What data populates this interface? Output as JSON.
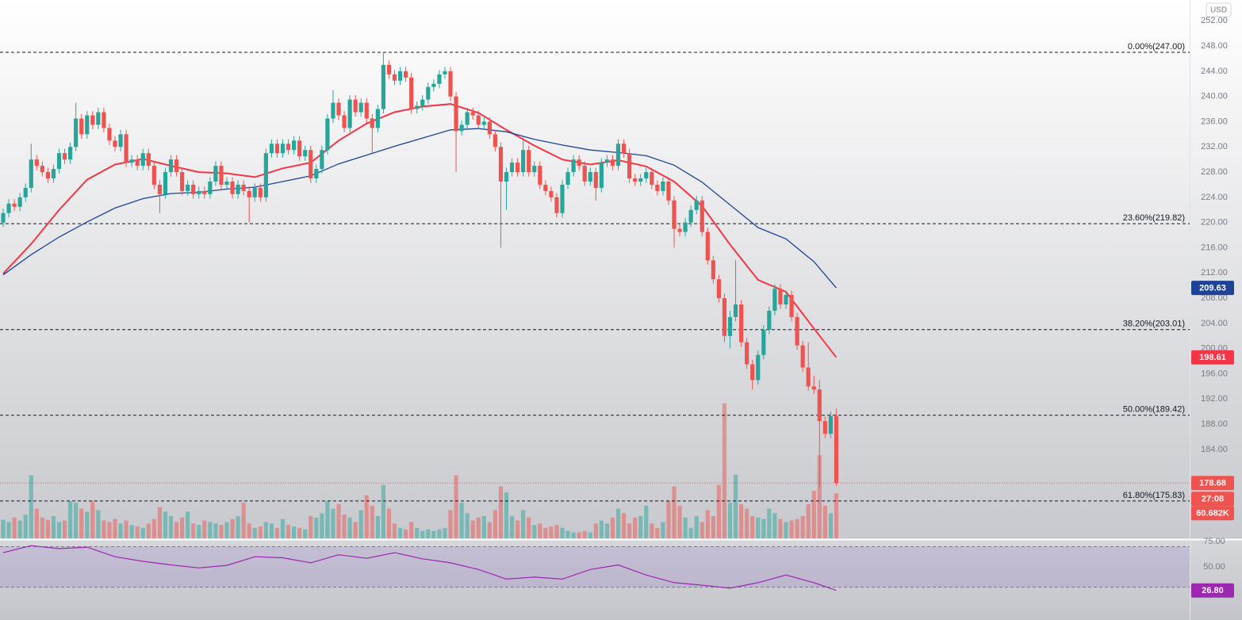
{
  "chart_data": {
    "type": "candlestick",
    "currency": "USD",
    "xlim": [
      -0.57,
      212.2
    ],
    "ylim": [
      169.9,
      255.3
    ],
    "yticks": [
      {
        "value": 252,
        "label": "252.00"
      },
      {
        "value": 248,
        "label": "248.00"
      },
      {
        "value": 244,
        "label": "244.00"
      },
      {
        "value": 240,
        "label": "240.00"
      },
      {
        "value": 236,
        "label": "236.00"
      },
      {
        "value": 232,
        "label": "232.00"
      },
      {
        "value": 228,
        "label": "228.00"
      },
      {
        "value": 224,
        "label": "224.00"
      },
      {
        "value": 220,
        "label": "220.00"
      },
      {
        "value": 216,
        "label": "216.00"
      },
      {
        "value": 212,
        "label": "212.00"
      },
      {
        "value": 208,
        "label": "208.00"
      },
      {
        "value": 204,
        "label": "204.00"
      },
      {
        "value": 200,
        "label": "200.00"
      },
      {
        "value": 196,
        "label": "196.00"
      },
      {
        "value": 192,
        "label": "192.00"
      },
      {
        "value": 188,
        "label": "188.00"
      },
      {
        "value": 184,
        "label": "184.00"
      }
    ],
    "colors": {
      "up": "#26a69a",
      "down": "#ef5350"
    },
    "candles": [
      [
        220,
        222.2,
        219.3,
        221.5
      ],
      [
        221.5,
        223.7,
        220.8,
        223
      ],
      [
        223,
        223.7,
        221.8,
        222.5
      ],
      [
        222.5,
        224.7,
        221.8,
        224
      ],
      [
        224,
        226.2,
        223.3,
        225.5
      ],
      [
        225.5,
        232.5,
        224.8,
        230
      ],
      [
        230,
        230.7,
        228.3,
        229
      ],
      [
        229,
        229.7,
        227.3,
        228
      ],
      [
        228,
        228.7,
        226.3,
        227
      ],
      [
        227,
        229.2,
        226.3,
        228.5
      ],
      [
        228.5,
        231.7,
        227.8,
        231
      ],
      [
        231,
        231.7,
        229.3,
        230
      ],
      [
        230,
        232.7,
        229.3,
        232
      ],
      [
        232,
        239,
        231.3,
        236.5
      ],
      [
        236.5,
        237.2,
        233.3,
        234
      ],
      [
        234,
        237.7,
        233.3,
        237
      ],
      [
        237,
        237.7,
        234.8,
        235.5
      ],
      [
        235.5,
        238.2,
        234.8,
        237.5
      ],
      [
        237.5,
        238.2,
        234.3,
        235
      ],
      [
        235,
        235.7,
        232.3,
        233
      ],
      [
        233,
        233.7,
        231.3,
        232
      ],
      [
        232,
        234.7,
        231.3,
        234
      ],
      [
        234,
        234.7,
        228.8,
        229.5
      ],
      [
        229.5,
        230.7,
        228.8,
        230
      ],
      [
        230,
        230.7,
        228.3,
        229
      ],
      [
        229,
        231.7,
        228.3,
        231
      ],
      [
        231,
        231.7,
        228.3,
        229
      ],
      [
        229,
        229.7,
        225.3,
        226
      ],
      [
        226,
        226.7,
        221.5,
        224.5
      ],
      [
        224.5,
        228.7,
        223.8,
        228
      ],
      [
        228,
        230.7,
        227.3,
        230
      ],
      [
        230,
        230.7,
        227.3,
        228
      ],
      [
        228,
        228.7,
        224.3,
        225
      ],
      [
        225,
        226.7,
        224.3,
        226
      ],
      [
        226,
        226.7,
        223.8,
        224.5
      ],
      [
        224.5,
        225.7,
        223.8,
        225
      ],
      [
        225,
        225.7,
        223.8,
        224.5
      ],
      [
        224.5,
        227.2,
        223.8,
        226.5
      ],
      [
        226.5,
        229.7,
        225.8,
        229
      ],
      [
        229,
        229.7,
        225.3,
        226
      ],
      [
        226,
        227.2,
        225.3,
        226.5
      ],
      [
        226.5,
        227.2,
        223.8,
        224.5
      ],
      [
        224.5,
        226.7,
        223.8,
        226
      ],
      [
        226,
        226.7,
        224.3,
        225
      ],
      [
        225,
        225.7,
        220,
        224
      ],
      [
        224,
        226.2,
        223.3,
        225.5
      ],
      [
        225.5,
        226.2,
        223.3,
        224
      ],
      [
        224,
        231.7,
        223.3,
        231
      ],
      [
        231,
        233.2,
        230.3,
        232.5
      ],
      [
        232.5,
        233.2,
        230.3,
        231
      ],
      [
        231,
        233.2,
        230.3,
        232.5
      ],
      [
        232.5,
        233.2,
        230.8,
        231.5
      ],
      [
        231.5,
        233.7,
        230.8,
        233
      ],
      [
        233,
        233.7,
        229.8,
        230.5
      ],
      [
        230.5,
        232.2,
        229.8,
        231.5
      ],
      [
        231.5,
        232.2,
        226.3,
        227
      ],
      [
        227,
        229.2,
        226.3,
        228.5
      ],
      [
        228.5,
        232.2,
        227.8,
        231.5
      ],
      [
        231.5,
        237.2,
        230.8,
        236.5
      ],
      [
        236.5,
        241,
        235.8,
        239
      ],
      [
        239,
        239.7,
        236.3,
        237
      ],
      [
        237,
        237.7,
        234.3,
        235
      ],
      [
        235,
        240.2,
        234.3,
        239.5
      ],
      [
        239.5,
        240.2,
        236.8,
        237.5
      ],
      [
        237.5,
        239.7,
        236.8,
        239
      ],
      [
        239,
        239.7,
        235.8,
        236.5
      ],
      [
        236.5,
        237.2,
        231,
        235
      ],
      [
        235,
        238.7,
        234.3,
        238
      ],
      [
        238,
        247,
        237.3,
        245
      ],
      [
        245,
        245.7,
        242.8,
        243.5
      ],
      [
        243.5,
        244.2,
        241.8,
        242.5
      ],
      [
        242.5,
        244.7,
        241.8,
        244
      ],
      [
        244,
        244.7,
        242.3,
        243
      ],
      [
        243,
        243.7,
        237.3,
        238
      ],
      [
        238,
        239.2,
        237.3,
        238.5
      ],
      [
        238.5,
        240.2,
        237.8,
        239.5
      ],
      [
        239.5,
        242.2,
        238.8,
        241.5
      ],
      [
        241.5,
        242.7,
        240.8,
        242
      ],
      [
        242,
        244.2,
        241.3,
        243.5
      ],
      [
        243.5,
        244.7,
        242.8,
        244
      ],
      [
        244,
        244.7,
        239.3,
        240
      ],
      [
        240,
        240.7,
        228,
        234.5
      ],
      [
        234.5,
        236.2,
        233.8,
        235.5
      ],
      [
        235.5,
        238.2,
        234.8,
        237.5
      ],
      [
        237.5,
        238.2,
        236.3,
        237
      ],
      [
        237,
        237.7,
        234.8,
        235.5
      ],
      [
        235.5,
        236.7,
        234.8,
        236
      ],
      [
        236,
        236.7,
        233.3,
        234
      ],
      [
        234,
        234.7,
        231.3,
        232
      ],
      [
        232,
        232.7,
        216,
        226.5
      ],
      [
        226.5,
        228.7,
        222,
        228
      ],
      [
        228,
        230.2,
        227.3,
        229.5
      ],
      [
        229.5,
        230.2,
        227.3,
        228
      ],
      [
        228,
        233.5,
        227.3,
        231.5
      ],
      [
        231.5,
        232.2,
        227.3,
        228
      ],
      [
        228,
        229.7,
        227.3,
        229
      ],
      [
        229,
        229.7,
        225.3,
        226
      ],
      [
        226,
        226.7,
        224.3,
        225
      ],
      [
        225,
        225.7,
        223.3,
        224
      ],
      [
        224,
        224.7,
        220.8,
        221.5
      ],
      [
        221.5,
        226.7,
        220.8,
        226
      ],
      [
        226,
        228.7,
        225.3,
        228
      ],
      [
        228,
        230.7,
        227.3,
        230
      ],
      [
        230,
        230.7,
        228.3,
        229
      ],
      [
        229,
        229.7,
        225.8,
        226.5
      ],
      [
        226.5,
        228.7,
        225.8,
        228
      ],
      [
        228,
        228.7,
        223.5,
        225.5
      ],
      [
        225.5,
        230.2,
        224.8,
        229.5
      ],
      [
        229.5,
        230.7,
        228.8,
        230
      ],
      [
        230,
        230.7,
        228.3,
        229
      ],
      [
        229,
        233.2,
        228.3,
        232.5
      ],
      [
        232.5,
        233.2,
        230.3,
        231
      ],
      [
        231,
        231.7,
        226.3,
        227
      ],
      [
        227,
        227.7,
        225.8,
        226.5
      ],
      [
        226.5,
        227.7,
        225.8,
        227
      ],
      [
        227,
        228.7,
        226.3,
        228
      ],
      [
        228,
        228.7,
        225.3,
        226
      ],
      [
        226,
        226.7,
        224.3,
        225
      ],
      [
        225,
        227.2,
        224.3,
        226.5
      ],
      [
        226.5,
        227.2,
        222.8,
        223.5
      ],
      [
        223.5,
        224.2,
        216,
        219
      ],
      [
        219,
        219.7,
        217.8,
        218.5
      ],
      [
        218.5,
        220.7,
        217.8,
        220
      ],
      [
        220,
        222.7,
        219.3,
        222
      ],
      [
        222,
        224.2,
        221.3,
        223.5
      ],
      [
        223.5,
        224.2,
        217.8,
        218.5
      ],
      [
        218.5,
        219.2,
        213.3,
        214
      ],
      [
        214,
        214.7,
        210.3,
        211
      ],
      [
        211,
        211.7,
        207.3,
        208
      ],
      [
        208,
        208.7,
        201,
        202
      ],
      [
        202,
        206,
        200,
        205
      ],
      [
        205,
        214,
        204.3,
        207
      ],
      [
        207,
        207.7,
        200.3,
        201
      ],
      [
        201,
        201.7,
        196.8,
        197.5
      ],
      [
        197.5,
        198.2,
        193.5,
        195
      ],
      [
        195,
        199.7,
        194.3,
        199
      ],
      [
        199,
        203.7,
        198.3,
        203
      ],
      [
        203,
        206.7,
        202.3,
        206
      ],
      [
        206,
        210.2,
        205.3,
        209.5
      ],
      [
        209.5,
        210.2,
        206.3,
        207
      ],
      [
        207,
        209.2,
        206.3,
        208.5
      ],
      [
        208.5,
        209.2,
        204.3,
        205
      ],
      [
        205,
        205.7,
        199.8,
        200.5
      ],
      [
        200.5,
        201.2,
        196.3,
        197
      ],
      [
        197,
        201,
        193.3,
        194
      ],
      [
        194,
        195.7,
        192.8,
        193.5
      ],
      [
        193.5,
        195,
        178,
        188.5
      ],
      [
        188.5,
        189.2,
        185.8,
        186.5
      ],
      [
        186.5,
        190,
        185.8,
        189.3
      ],
      [
        189.3,
        190.5,
        178.2,
        178.68
      ]
    ],
    "last_label": "178.68",
    "countdown": "27:08",
    "volume": [
      25,
      22,
      28,
      24,
      32,
      85,
      40,
      28,
      25,
      30,
      22,
      24,
      50,
      48,
      40,
      36,
      50,
      38,
      24,
      22,
      26,
      20,
      24,
      18,
      16,
      14,
      20,
      26,
      42,
      36,
      30,
      22,
      28,
      36,
      20,
      18,
      24,
      22,
      20,
      18,
      22,
      26,
      30,
      48,
      20,
      14,
      16,
      22,
      20,
      14,
      26,
      18,
      16,
      14,
      12,
      30,
      28,
      34,
      50,
      40,
      46,
      32,
      28,
      22,
      38,
      58,
      44,
      30,
      72,
      40,
      20,
      14,
      12,
      22,
      14,
      10,
      12,
      10,
      12,
      14,
      38,
      85,
      48,
      34,
      24,
      28,
      30,
      22,
      38,
      70,
      62,
      30,
      24,
      38,
      28,
      18,
      20,
      14,
      16,
      18,
      14,
      10,
      8,
      8,
      10,
      8,
      20,
      24,
      20,
      28,
      40,
      34,
      20,
      28,
      30,
      44,
      20,
      14,
      22,
      50,
      70,
      44,
      28,
      14,
      30,
      22,
      38,
      30,
      72,
      182,
      48,
      86,
      46,
      40,
      30,
      28,
      26,
      40,
      34,
      26,
      22,
      24,
      26,
      30,
      46,
      64,
      112,
      44,
      34,
      60.682
    ],
    "volume_lim": [
      0,
      200
    ],
    "volume_label": "60.682K",
    "indicator_x": [
      0,
      5,
      10,
      15,
      20,
      25,
      30,
      35,
      40,
      45,
      50,
      55,
      60,
      65,
      70,
      75,
      80,
      85,
      90,
      95,
      100,
      105,
      110,
      115,
      120,
      125,
      130,
      135,
      140,
      145,
      149
    ],
    "moving_averages": [
      {
        "color": "#f23645",
        "label": "198.61",
        "values": [
          211.9,
          216.6,
          222.0,
          226.8,
          229.2,
          230.1,
          229.0,
          228.0,
          227.8,
          227.2,
          228.6,
          229.5,
          233.0,
          235.7,
          237.5,
          238.4,
          238.8,
          237.4,
          234.7,
          232.2,
          230.0,
          229.2,
          229.9,
          228.9,
          226.5,
          222.6,
          216.5,
          210.9,
          209.0,
          203.2,
          198.61
        ]
      },
      {
        "color": "#1e4396",
        "label": "209.63",
        "values": [
          211.7,
          214.9,
          217.7,
          220.1,
          222.3,
          223.8,
          224.6,
          224.8,
          225.3,
          225.6,
          226.5,
          227.4,
          229.3,
          230.7,
          232.1,
          233.4,
          234.7,
          234.9,
          234.4,
          233.2,
          232.3,
          231.5,
          231.1,
          230.6,
          229.1,
          226.4,
          222.8,
          219.2,
          217.4,
          213.8,
          209.63
        ]
      }
    ],
    "fibonacci": [
      {
        "value": 247,
        "label": "0.00%(247.00)"
      },
      {
        "value": 219.82,
        "label": "23.60%(219.82)"
      },
      {
        "value": 203.01,
        "label": "38.20%(203.01)"
      },
      {
        "value": 189.42,
        "label": "50.00%(189.42)"
      },
      {
        "value": 175.83,
        "label": "61.80%(175.83)"
      }
    ],
    "rsi": {
      "color": "#9c27b0",
      "label": "26.80",
      "ylim": [
        -2.3,
        76.6
      ],
      "yticks": [
        {
          "value": 75,
          "label": "75.00"
        },
        {
          "value": 50,
          "label": "50.00"
        }
      ],
      "band": [
        30,
        70
      ],
      "values": [
        64,
        71,
        68,
        69.5,
        60,
        55.5,
        52,
        49,
        51.5,
        60,
        59,
        54,
        62,
        58.5,
        64,
        58,
        54,
        47.5,
        38,
        40,
        38,
        47.5,
        52,
        42,
        34.5,
        32,
        29,
        34.5,
        42,
        34.5,
        26.8
      ]
    }
  }
}
